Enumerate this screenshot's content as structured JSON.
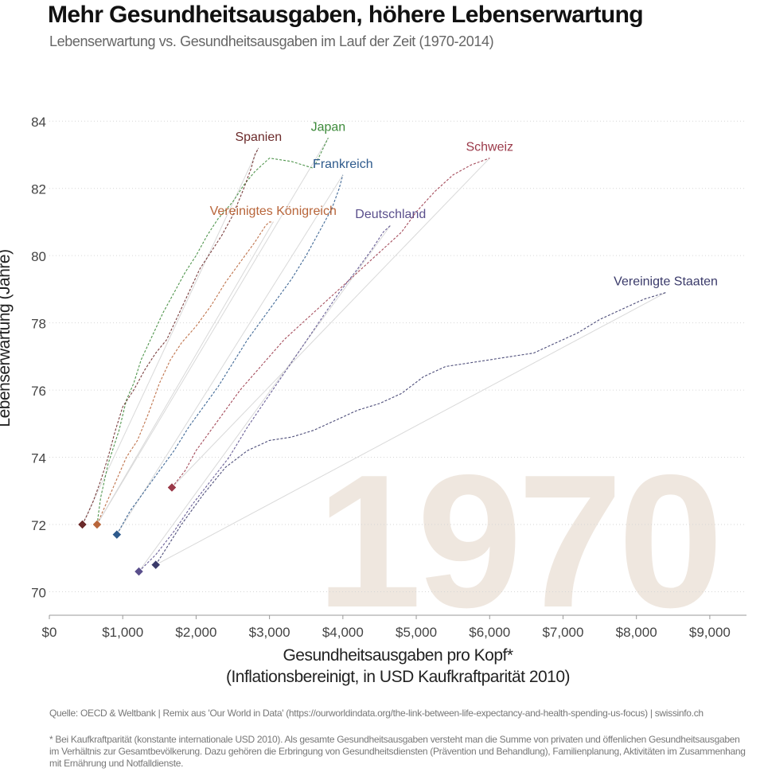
{
  "title": "Mehr Gesundheitsausgaben, höhere Lebenserwartung",
  "subtitle": "Lebenserwartung vs. Gesundheitsausgaben im Lauf der Zeit (1970-2014)",
  "source": "Quelle: OECD & Weltbank | Remix aus 'Our World in Data' (https://ourworldindata.org/the-link-between-life-expectancy-and-health-spending-us-focus) | swissinfo.ch",
  "footnote": "* Bei Kaufkraftparität (konstante internationale USD 2010). Als gesamte Gesundheitsausgaben versteht man die Summe von privaten und öffenlichen Gesundheitsausgaben im Verhältnis zur Gesamtbevölkerung. Dazu gehören die Erbringung von Gesundheitsdiensten (Prävention und Behandlung), Familienplanung, Aktivitäten im Zusammenhang mit Ernährung und Notfalldienste.",
  "chart_data": {
    "type": "line",
    "xlabel": "Gesundheitsausgaben pro Kopf*",
    "xlabel_line2": "(Inflationsbereinigt, in USD Kaufkraftparität 2010)",
    "ylabel": "Lebenserwartung (Jahre)",
    "xlim": [
      0,
      9500
    ],
    "ylim": [
      69.3,
      85
    ],
    "x_ticks": [
      0,
      1000,
      2000,
      3000,
      4000,
      5000,
      6000,
      7000,
      8000,
      9000
    ],
    "x_tick_labels": [
      "$0",
      "$1,000",
      "$2,000",
      "$3,000",
      "$4,000",
      "$5,000",
      "$6,000",
      "$7,000",
      "$8,000",
      "$9,000"
    ],
    "y_ticks": [
      70,
      72,
      74,
      76,
      78,
      80,
      82,
      84
    ],
    "y_tick_labels": [
      "70",
      "72",
      "74",
      "76",
      "78",
      "80",
      "82",
      "84"
    ],
    "grid": "horizontal dotted",
    "year_label": "1970",
    "year_label_color": "#efe7df",
    "series": [
      {
        "name": "Japan",
        "color": "#3d8a3a",
        "x": [
          650,
          700,
          800,
          950,
          1050,
          1150,
          1250,
          1400,
          1550,
          1700,
          1850,
          2000,
          2150,
          2300,
          2500,
          2650,
          2800,
          3000,
          3300,
          3600,
          3800
        ],
        "y": [
          72.0,
          72.8,
          73.8,
          74.8,
          75.7,
          76.2,
          76.9,
          77.6,
          78.3,
          78.9,
          79.5,
          80.0,
          80.6,
          81.1,
          81.6,
          82.1,
          82.5,
          82.9,
          82.8,
          82.6,
          83.5
        ]
      },
      {
        "name": "Spanien",
        "color": "#6b2a2a",
        "x": [
          450,
          520,
          600,
          700,
          800,
          900,
          1000,
          1150,
          1300,
          1450,
          1600,
          1750,
          1900,
          2050,
          2200,
          2350,
          2500,
          2650,
          2750,
          2800,
          2850
        ],
        "y": [
          72.0,
          72.3,
          72.7,
          73.3,
          74.0,
          74.8,
          75.5,
          76.0,
          76.6,
          77.1,
          77.5,
          78.2,
          78.9,
          79.6,
          80.1,
          80.6,
          81.2,
          82.0,
          82.6,
          83.0,
          83.2
        ]
      },
      {
        "name": "Vereinigtes Königreich",
        "color": "#b8653a",
        "x": [
          650,
          750,
          850,
          950,
          1050,
          1200,
          1350,
          1500,
          1650,
          1800,
          2000,
          2200,
          2400,
          2600,
          2800,
          2950,
          3000,
          3050
        ],
        "y": [
          72.0,
          72.5,
          73.0,
          73.5,
          74.0,
          74.5,
          75.3,
          76.2,
          76.9,
          77.4,
          77.9,
          78.5,
          79.2,
          79.8,
          80.4,
          80.9,
          81.0,
          81.0
        ]
      },
      {
        "name": "Frankreich",
        "color": "#2e5a8c",
        "x": [
          920,
          1100,
          1300,
          1500,
          1700,
          1900,
          2100,
          2300,
          2500,
          2700,
          2900,
          3100,
          3300,
          3500,
          3700,
          3850,
          3950,
          4000
        ],
        "y": [
          71.7,
          72.4,
          73.0,
          73.6,
          74.2,
          74.9,
          75.5,
          76.1,
          76.8,
          77.5,
          78.1,
          78.7,
          79.3,
          80.0,
          80.8,
          81.4,
          82.0,
          82.4
        ]
      },
      {
        "name": "Schweiz",
        "color": "#9b3a4a",
        "x": [
          1670,
          1850,
          2000,
          2200,
          2400,
          2600,
          2800,
          3000,
          3200,
          3400,
          3600,
          3800,
          4000,
          4200,
          4400,
          4600,
          4800,
          5000,
          5250,
          5500,
          5750,
          6000
        ],
        "y": [
          73.1,
          73.6,
          74.2,
          74.8,
          75.4,
          76.0,
          76.5,
          77.0,
          77.5,
          77.9,
          78.3,
          78.7,
          79.1,
          79.5,
          79.9,
          80.3,
          80.7,
          81.3,
          81.9,
          82.4,
          82.7,
          82.9
        ]
      },
      {
        "name": "Deutschland",
        "color": "#5a4f8c",
        "x": [
          1220,
          1450,
          1700,
          1950,
          2200,
          2450,
          2700,
          2950,
          3200,
          3450,
          3700,
          3950,
          4200,
          4400,
          4550,
          4650
        ],
        "y": [
          70.6,
          71.1,
          71.8,
          72.6,
          73.3,
          74.0,
          74.9,
          75.7,
          76.5,
          77.3,
          78.1,
          78.9,
          79.6,
          80.2,
          80.7,
          80.9
        ]
      },
      {
        "name": "Vereinigte Staaten",
        "color": "#3a3a6a",
        "x": [
          1450,
          1800,
          2100,
          2400,
          2700,
          3000,
          3300,
          3600,
          3900,
          4200,
          4500,
          4800,
          5100,
          5400,
          5700,
          6000,
          6300,
          6600,
          6900,
          7200,
          7500,
          7800,
          8100,
          8400
        ],
        "y": [
          70.8,
          72.0,
          72.9,
          73.7,
          74.2,
          74.5,
          74.6,
          74.8,
          75.1,
          75.4,
          75.6,
          75.9,
          76.4,
          76.7,
          76.8,
          76.9,
          77.0,
          77.1,
          77.4,
          77.7,
          78.1,
          78.4,
          78.7,
          78.9
        ]
      }
    ]
  }
}
